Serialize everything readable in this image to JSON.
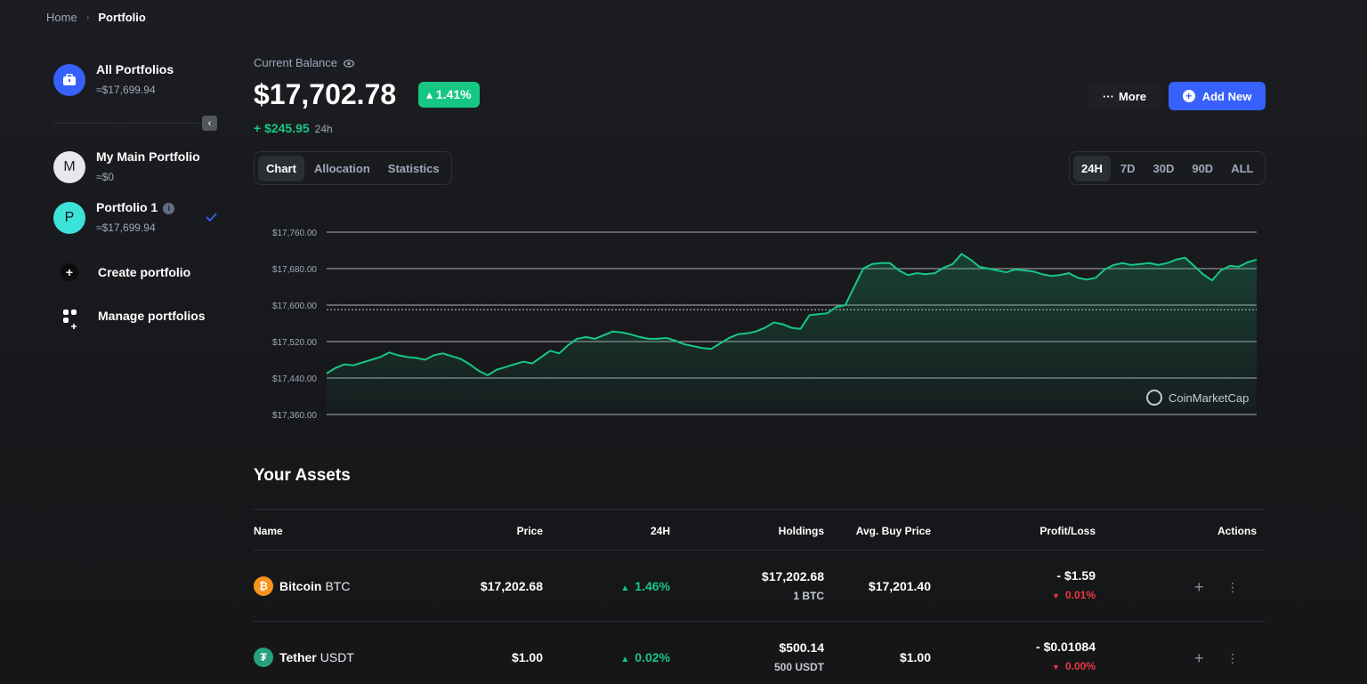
{
  "breadcrumb": {
    "home": "Home",
    "sep": "›",
    "current": "Portfolio"
  },
  "sidebar": {
    "all": {
      "name": "All Portfolios",
      "value": "≈$17,699.94"
    },
    "portfolios": [
      {
        "initial": "M",
        "name": "My Main Portfolio",
        "value": "≈$0"
      },
      {
        "initial": "P",
        "name": "Portfolio 1",
        "value": "≈$17,699.94"
      }
    ],
    "create_label": "Create portfolio",
    "manage_label": "Manage portfolios"
  },
  "header": {
    "current_balance_label": "Current Balance",
    "balance": "$17,702.78",
    "pct_change": "1.41%",
    "change_amount": "+ $245.95",
    "change_period": "24h",
    "more_label": "More",
    "add_label": "Add New"
  },
  "view_tabs": [
    "Chart",
    "Allocation",
    "Statistics"
  ],
  "range_tabs": [
    "24H",
    "7D",
    "30D",
    "90D",
    "ALL"
  ],
  "watermark": "CoinMarketCap",
  "chart_data": {
    "type": "area",
    "y_ticks": [
      "$17,760.00",
      "$17,680.00",
      "$17,600.00",
      "$17,520.00",
      "$17,440.00",
      "$17,360.00"
    ],
    "ylim": [
      17360,
      17760
    ],
    "baseline": 17590,
    "color": "#16c784",
    "values": [
      17450,
      17462,
      17470,
      17468,
      17474,
      17480,
      17486,
      17496,
      17490,
      17486,
      17484,
      17480,
      17490,
      17494,
      17488,
      17482,
      17470,
      17456,
      17446,
      17458,
      17464,
      17470,
      17476,
      17472,
      17486,
      17500,
      17494,
      17512,
      17526,
      17530,
      17526,
      17534,
      17542,
      17540,
      17536,
      17530,
      17526,
      17526,
      17528,
      17522,
      17514,
      17510,
      17506,
      17504,
      17516,
      17528,
      17536,
      17538,
      17542,
      17550,
      17562,
      17558,
      17550,
      17548,
      17578,
      17580,
      17582,
      17596,
      17600,
      17640,
      17680,
      17690,
      17692,
      17692,
      17676,
      17666,
      17670,
      17668,
      17670,
      17682,
      17690,
      17712,
      17700,
      17684,
      17680,
      17676,
      17672,
      17678,
      17676,
      17674,
      17668,
      17664,
      17666,
      17670,
      17660,
      17656,
      17660,
      17678,
      17688,
      17692,
      17688,
      17690,
      17692,
      17688,
      17692,
      17700,
      17704,
      17686,
      17668,
      17654,
      17676,
      17686,
      17684,
      17694,
      17700
    ]
  },
  "assets": {
    "title": "Your Assets",
    "columns": [
      "Name",
      "Price",
      "24H",
      "Holdings",
      "Avg. Buy Price",
      "Profit/Loss",
      "Actions"
    ],
    "rows": [
      {
        "icon": "₿",
        "name": "Bitcoin",
        "symbol": "BTC",
        "price": "$17,202.68",
        "change": "1.46%",
        "holdings_value": "$17,202.68",
        "holdings_amount": "1 BTC",
        "avg_buy": "$17,201.40",
        "pl_value": "- $1.59",
        "pl_pct": "0.01%"
      },
      {
        "icon": "₮",
        "name": "Tether",
        "symbol": "USDT",
        "price": "$1.00",
        "change": "0.02%",
        "holdings_value": "$500.14",
        "holdings_amount": "500 USDT",
        "avg_buy": "$1.00",
        "pl_value": "- $0.01084",
        "pl_pct": "0.00%"
      }
    ]
  },
  "colors": {
    "accent": "#3861fb",
    "up": "#16c784",
    "down": "#ea3943"
  },
  "icons": [
    "briefcase-icon",
    "eye-icon",
    "caret-up-icon",
    "caret-down-icon",
    "plus-icon",
    "more-dots-icon",
    "info-icon",
    "check-icon",
    "grid-icon",
    "chevron-left-icon"
  ]
}
